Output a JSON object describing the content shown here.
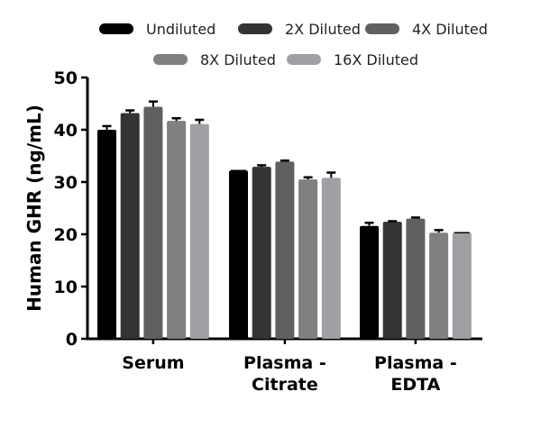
{
  "chart_data": {
    "type": "bar",
    "title": "",
    "xlabel": "",
    "ylabel": "Human GHR (ng/mL)",
    "ylim": [
      0,
      50
    ],
    "yticks": [
      0,
      10,
      20,
      30,
      40,
      50
    ],
    "categories": [
      "Serum",
      "Plasma -\nCitrate",
      "Plasma -\nEDTA"
    ],
    "category_lines": [
      [
        "Serum"
      ],
      [
        "Plasma -",
        "Citrate"
      ],
      [
        "Plasma -",
        "EDTA"
      ]
    ],
    "legend_position": "top",
    "grid": false,
    "series": [
      {
        "name": "Undiluted",
        "color": "#000000",
        "values": [
          40.0,
          32.2,
          21.6
        ],
        "errors": [
          0.7,
          0.0,
          0.6
        ]
      },
      {
        "name": "2X Diluted",
        "color": "#333333",
        "values": [
          43.2,
          32.9,
          22.4
        ],
        "errors": [
          0.5,
          0.3,
          0.1
        ]
      },
      {
        "name": "4X Diluted",
        "color": "#606060",
        "values": [
          44.4,
          33.9,
          23.0
        ],
        "errors": [
          1.0,
          0.2,
          0.2
        ]
      },
      {
        "name": "8X Diluted",
        "color": "#808080",
        "values": [
          41.7,
          30.5,
          20.3
        ],
        "errors": [
          0.5,
          0.4,
          0.5
        ]
      },
      {
        "name": "16X Diluted",
        "color": "#a0a0a4",
        "values": [
          41.1,
          30.8,
          20.3
        ],
        "errors": [
          0.8,
          1.0,
          0.0
        ]
      }
    ]
  }
}
